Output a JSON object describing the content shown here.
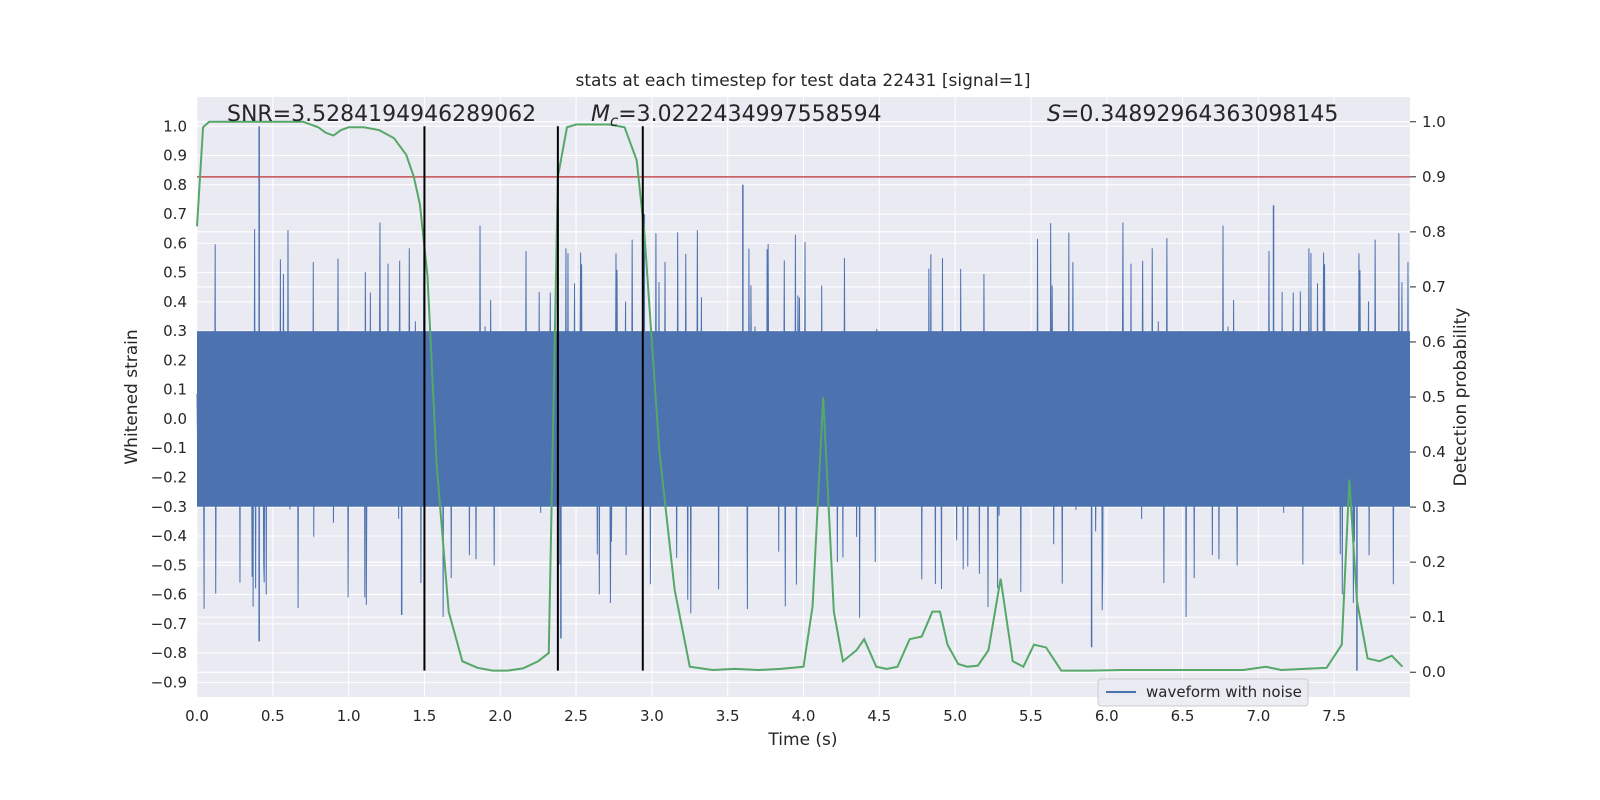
{
  "chart_data": {
    "type": "line",
    "title": "stats at each timestep for test data 22431 [signal=1]",
    "xlabel": "Time (s)",
    "ylabel": "Whitened strain",
    "ylabel_right": "Detection probability",
    "xlim": [
      0.0,
      8.0
    ],
    "ylim": [
      -0.95,
      1.1
    ],
    "ylim_right": [
      -0.045,
      1.045
    ],
    "xticks": [
      "0.0",
      "0.5",
      "1.0",
      "1.5",
      "2.0",
      "2.5",
      "3.0",
      "3.5",
      "4.0",
      "4.5",
      "5.0",
      "5.5",
      "6.0",
      "6.5",
      "7.0",
      "7.5"
    ],
    "yticks": [
      "-0.9",
      "-0.8",
      "-0.7",
      "-0.6",
      "-0.5",
      "-0.4",
      "-0.3",
      "-0.2",
      "-0.1",
      "0.0",
      "0.1",
      "0.2",
      "0.3",
      "0.4",
      "0.5",
      "0.6",
      "0.7",
      "0.8",
      "0.9",
      "1.0"
    ],
    "yticks_right": [
      "0.0",
      "0.1",
      "0.2",
      "0.3",
      "0.4",
      "0.5",
      "0.6",
      "0.7",
      "0.8",
      "0.9",
      "1.0"
    ],
    "annotations": {
      "snr": "SNR=3.5284194946289062",
      "mc_symbol": "M",
      "mc_sub": "c",
      "mc_value": "=3.0222434997558594",
      "s_symbol": "S",
      "s_value": "=0.34892964363098145"
    },
    "legend": {
      "label": "waveform with noise",
      "position": "lower-right"
    },
    "threshold_right": 0.9,
    "vertical_lines_x": [
      1.5,
      2.38,
      2.94
    ],
    "vertical_lines_yrange": [
      -0.86,
      1.0
    ],
    "waveform": {
      "name": "waveform with noise",
      "duration": 8.0,
      "samples": 2400,
      "core_amplitude": 0.3,
      "spike_peaks": [
        {
          "x": 0.41,
          "y": 1.0
        },
        {
          "x": 0.41,
          "y": -0.76
        },
        {
          "x": 2.38,
          "y": 0.84
        },
        {
          "x": 2.4,
          "y": -0.75
        },
        {
          "x": 3.6,
          "y": 0.8
        },
        {
          "x": 5.9,
          "y": -0.78
        },
        {
          "x": 7.1,
          "y": 0.73
        },
        {
          "x": 7.65,
          "y": -0.86
        },
        {
          "x": 1.35,
          "y": -0.67
        },
        {
          "x": 2.95,
          "y": 0.7
        }
      ]
    },
    "series": [
      {
        "name": "detection probability",
        "axis": "right",
        "x": [
          0.0,
          0.04,
          0.08,
          0.12,
          0.2,
          0.3,
          0.5,
          0.7,
          0.8,
          0.85,
          0.9,
          0.95,
          1.0,
          1.1,
          1.2,
          1.3,
          1.38,
          1.43,
          1.47,
          1.52,
          1.58,
          1.66,
          1.75,
          1.85,
          1.95,
          2.05,
          2.15,
          2.25,
          2.32,
          2.38,
          2.44,
          2.5,
          2.55,
          2.62,
          2.72,
          2.82,
          2.9,
          2.95,
          3.05,
          3.15,
          3.25,
          3.4,
          3.55,
          3.7,
          3.85,
          4.0,
          4.06,
          4.13,
          4.2,
          4.26,
          4.35,
          4.4,
          4.48,
          4.55,
          4.62,
          4.7,
          4.78,
          4.85,
          4.9,
          4.95,
          5.02,
          5.08,
          5.15,
          5.22,
          5.3,
          5.38,
          5.45,
          5.52,
          5.6,
          5.7,
          5.8,
          5.9,
          6.1,
          6.3,
          6.6,
          6.9,
          7.05,
          7.15,
          7.3,
          7.45,
          7.55,
          7.6,
          7.65,
          7.72,
          7.8,
          7.88,
          7.95
        ],
        "values": [
          0.81,
          0.99,
          1.0,
          1.0,
          1.0,
          1.0,
          1.0,
          1.0,
          0.99,
          0.98,
          0.975,
          0.985,
          0.99,
          0.99,
          0.985,
          0.97,
          0.94,
          0.9,
          0.85,
          0.72,
          0.38,
          0.11,
          0.02,
          0.008,
          0.003,
          0.003,
          0.007,
          0.02,
          0.035,
          0.9,
          0.99,
          0.995,
          0.995,
          0.995,
          0.995,
          0.99,
          0.93,
          0.8,
          0.4,
          0.15,
          0.01,
          0.004,
          0.006,
          0.004,
          0.006,
          0.01,
          0.12,
          0.5,
          0.11,
          0.02,
          0.04,
          0.06,
          0.01,
          0.006,
          0.01,
          0.06,
          0.065,
          0.11,
          0.11,
          0.05,
          0.015,
          0.01,
          0.012,
          0.04,
          0.17,
          0.02,
          0.01,
          0.05,
          0.045,
          0.003,
          0.003,
          0.003,
          0.004,
          0.004,
          0.004,
          0.004,
          0.01,
          0.004,
          0.006,
          0.008,
          0.05,
          0.35,
          0.13,
          0.025,
          0.02,
          0.03,
          0.01
        ]
      }
    ],
    "colors": {
      "waveform": "#4c72b0",
      "probability": "#55a868",
      "threshold": "#c44e52",
      "plot_bg": "#eaeaf2",
      "grid": "#ffffff",
      "vline": "#000000",
      "text": "#262626"
    }
  }
}
